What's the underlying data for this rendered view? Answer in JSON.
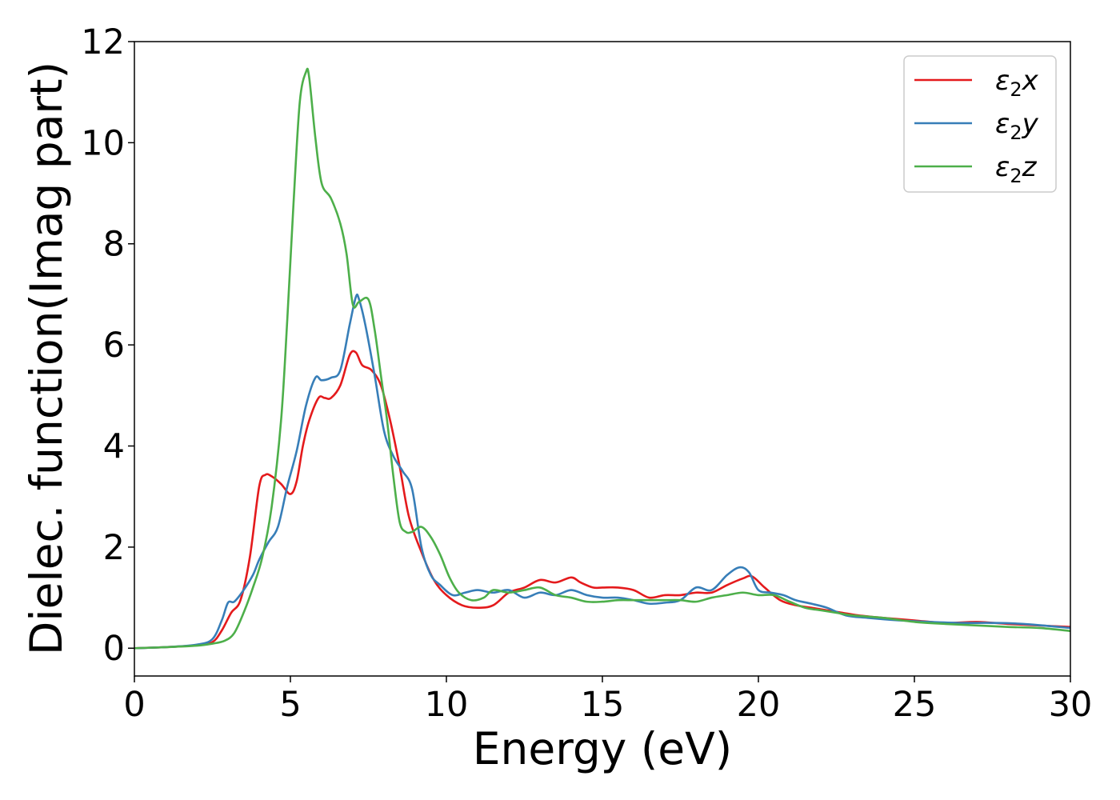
{
  "chart_data": {
    "type": "line",
    "xlabel": "Energy (eV)",
    "ylabel": "Dielec. function(Imag part)",
    "xlim": [
      0,
      30
    ],
    "ylim": [
      -0.55,
      12
    ],
    "xticks": [
      0,
      5,
      10,
      15,
      20,
      25,
      30
    ],
    "yticks": [
      0,
      2,
      4,
      6,
      8,
      10,
      12
    ],
    "grid": false,
    "legend_position": "top-right",
    "legend": [
      {
        "base": "ε",
        "sub": "2",
        "tail": "x",
        "color": "#e41a1c"
      },
      {
        "base": "ε",
        "sub": "2",
        "tail": "y",
        "color": "#377eb8"
      },
      {
        "base": "ε",
        "sub": "2",
        "tail": "z",
        "color": "#4daf4a"
      }
    ],
    "series": [
      {
        "color": "#e41a1c",
        "x": [
          0,
          1,
          2,
          2.5,
          2.8,
          3.1,
          3.4,
          3.7,
          4.0,
          4.2,
          4.4,
          4.7,
          5.0,
          5.2,
          5.4,
          5.6,
          5.9,
          6.1,
          6.3,
          6.6,
          6.9,
          7.1,
          7.3,
          7.6,
          7.9,
          8.2,
          8.5,
          8.8,
          9.2,
          9.6,
          10.0,
          10.5,
          11.0,
          11.5,
          12.0,
          12.5,
          13.0,
          13.5,
          14.0,
          14.3,
          14.7,
          15.0,
          15.5,
          16.0,
          16.5,
          17.0,
          17.5,
          18.0,
          18.5,
          19.0,
          19.5,
          19.8,
          20.2,
          20.7,
          21.2,
          21.7,
          22.2,
          22.7,
          23.2,
          24.0,
          25.0,
          26.0,
          27.0,
          28.0,
          29.0,
          30.0
        ],
        "values": [
          0,
          0.02,
          0.06,
          0.12,
          0.35,
          0.7,
          0.95,
          1.8,
          3.2,
          3.43,
          3.4,
          3.25,
          3.05,
          3.3,
          4.0,
          4.5,
          4.95,
          4.95,
          4.95,
          5.2,
          5.8,
          5.85,
          5.6,
          5.5,
          5.2,
          4.5,
          3.6,
          2.6,
          1.9,
          1.35,
          1.05,
          0.85,
          0.8,
          0.85,
          1.1,
          1.2,
          1.35,
          1.3,
          1.4,
          1.3,
          1.2,
          1.2,
          1.2,
          1.15,
          1.0,
          1.05,
          1.05,
          1.1,
          1.1,
          1.25,
          1.38,
          1.42,
          1.2,
          0.95,
          0.85,
          0.8,
          0.75,
          0.7,
          0.65,
          0.6,
          0.55,
          0.5,
          0.52,
          0.48,
          0.45,
          0.42
        ]
      },
      {
        "color": "#377eb8",
        "x": [
          0,
          1,
          2,
          2.5,
          2.8,
          3.0,
          3.2,
          3.5,
          3.8,
          4.0,
          4.3,
          4.6,
          4.9,
          5.2,
          5.5,
          5.8,
          6.0,
          6.3,
          6.6,
          6.9,
          7.1,
          7.2,
          7.4,
          7.7,
          8.0,
          8.3,
          8.6,
          8.9,
          9.2,
          9.5,
          9.8,
          10.2,
          10.6,
          11.0,
          11.5,
          12.0,
          12.5,
          13.0,
          13.5,
          14.0,
          14.5,
          15.0,
          15.5,
          16.0,
          16.5,
          17.0,
          17.5,
          18.0,
          18.5,
          19.0,
          19.4,
          19.7,
          20.0,
          20.4,
          20.8,
          21.2,
          21.7,
          22.2,
          22.8,
          23.5,
          24.5,
          25.5,
          26.5,
          27.5,
          28.5,
          30.0
        ],
        "values": [
          0,
          0.02,
          0.07,
          0.18,
          0.55,
          0.9,
          0.92,
          1.15,
          1.45,
          1.75,
          2.1,
          2.4,
          3.2,
          3.9,
          4.8,
          5.35,
          5.3,
          5.35,
          5.5,
          6.4,
          6.95,
          6.9,
          6.4,
          5.4,
          4.3,
          3.8,
          3.5,
          3.15,
          2.0,
          1.45,
          1.25,
          1.05,
          1.1,
          1.15,
          1.1,
          1.15,
          1.0,
          1.1,
          1.05,
          1.15,
          1.05,
          1.0,
          1.0,
          0.95,
          0.88,
          0.9,
          0.95,
          1.2,
          1.15,
          1.45,
          1.6,
          1.5,
          1.15,
          1.1,
          1.05,
          0.95,
          0.88,
          0.8,
          0.65,
          0.6,
          0.55,
          0.52,
          0.5,
          0.5,
          0.48,
          0.4
        ]
      },
      {
        "color": "#4daf4a",
        "x": [
          0,
          1,
          2,
          2.5,
          2.9,
          3.2,
          3.5,
          3.8,
          4.1,
          4.4,
          4.7,
          4.9,
          5.1,
          5.3,
          5.5,
          5.6,
          5.8,
          6.0,
          6.3,
          6.6,
          6.8,
          7.0,
          7.2,
          7.5,
          7.7,
          7.9,
          8.1,
          8.3,
          8.5,
          8.7,
          8.9,
          9.2,
          9.5,
          9.8,
          10.1,
          10.4,
          10.8,
          11.2,
          11.5,
          12.0,
          12.5,
          13.0,
          13.5,
          14.0,
          14.5,
          15.0,
          15.5,
          16.0,
          16.5,
          17.0,
          17.5,
          18.0,
          18.5,
          19.0,
          19.5,
          20.0,
          20.5,
          21.0,
          21.5,
          22.0,
          22.5,
          23.0,
          24.0,
          25.0,
          26.0,
          27.0,
          28.0,
          29.0,
          30.0
        ],
        "values": [
          0,
          0.02,
          0.05,
          0.09,
          0.15,
          0.3,
          0.7,
          1.2,
          1.8,
          2.8,
          4.5,
          6.5,
          8.8,
          10.8,
          11.4,
          11.3,
          10.1,
          9.2,
          8.9,
          8.4,
          7.8,
          6.8,
          6.85,
          6.9,
          6.3,
          5.4,
          4.5,
          3.4,
          2.5,
          2.3,
          2.3,
          2.4,
          2.2,
          1.85,
          1.4,
          1.1,
          0.95,
          1.0,
          1.15,
          1.1,
          1.15,
          1.2,
          1.05,
          1.0,
          0.92,
          0.92,
          0.95,
          0.95,
          0.95,
          0.95,
          0.95,
          0.92,
          1.0,
          1.05,
          1.1,
          1.05,
          1.05,
          0.92,
          0.8,
          0.75,
          0.7,
          0.65,
          0.6,
          0.52,
          0.48,
          0.45,
          0.42,
          0.4,
          0.34
        ]
      }
    ]
  }
}
